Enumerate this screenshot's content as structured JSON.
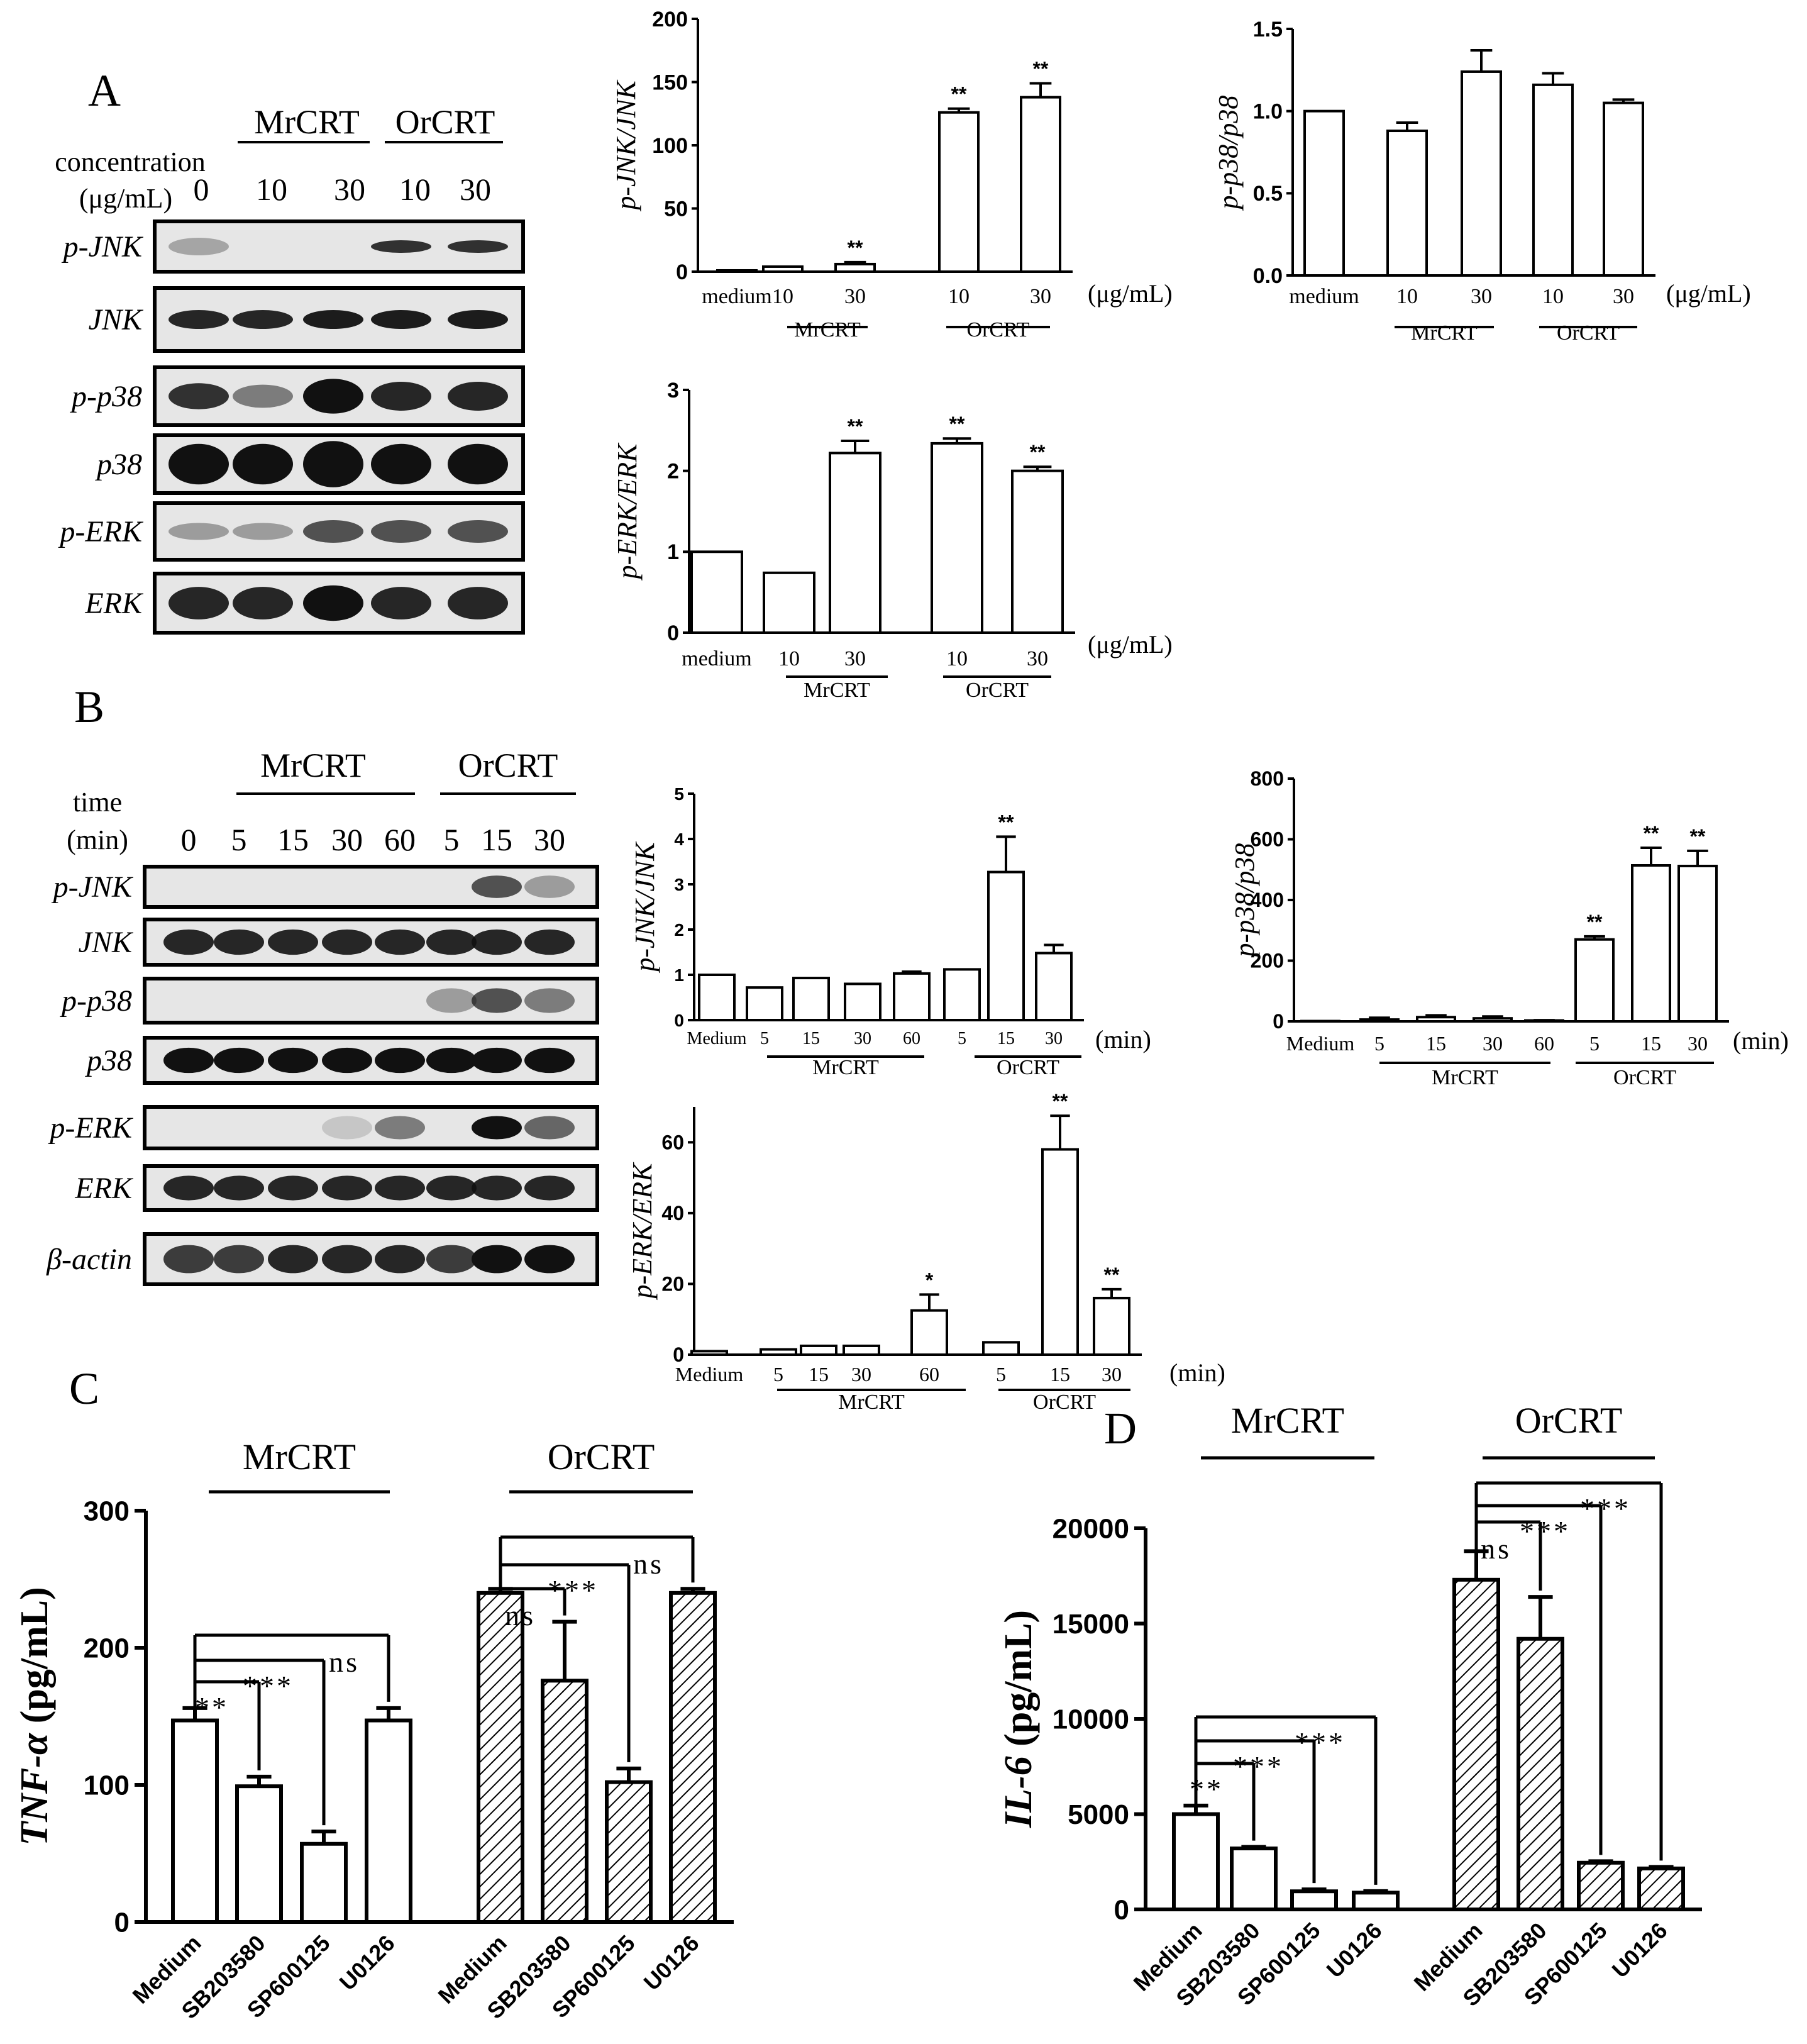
{
  "panel_letters": {
    "a": "A",
    "b": "B",
    "c": "C",
    "d": "D"
  },
  "blot_a": {
    "groups": [
      "MrCRT",
      "OrCRT"
    ],
    "header_label_line1": "concentration",
    "header_label_line2": "(μg/mL)",
    "lanes": [
      "0",
      "10",
      "30",
      "10",
      "30"
    ],
    "rows": [
      "p-JNK",
      "JNK",
      "p-p38",
      "p38",
      "p-ERK",
      "ERK"
    ]
  },
  "blot_b": {
    "groups": [
      "MrCRT",
      "OrCRT"
    ],
    "header_label_line1": "time",
    "header_label_line2": "(min)",
    "lanes": [
      "0",
      "5",
      "15",
      "30",
      "60",
      "5",
      "15",
      "30"
    ],
    "rows": [
      "p-JNK",
      "JNK",
      "p-p38",
      "p38",
      "p-ERK",
      "ERK",
      "β-actin"
    ]
  },
  "chart_data": [
    {
      "id": "a_pjnk",
      "type": "bar",
      "ylabel": "p-JNK/JNK",
      "ylim": [
        0,
        200
      ],
      "yticks": [
        "0",
        "50",
        "100",
        "150",
        "200"
      ],
      "categories": [
        "medium",
        "10",
        "30",
        "10",
        "30"
      ],
      "values": [
        1,
        4,
        6,
        126,
        138
      ],
      "errors": [
        0,
        0,
        1.5,
        3,
        11
      ],
      "significance": [
        "",
        "",
        "**",
        "**",
        "**"
      ],
      "groups": [
        "MrCRT",
        "OrCRT"
      ],
      "unit": "(μg/mL)"
    },
    {
      "id": "a_pp38",
      "type": "bar",
      "ylabel": "p-p38/p38",
      "ylim": [
        0,
        1.5
      ],
      "yticks": [
        "0.0",
        "0.5",
        "1.0",
        "1.5"
      ],
      "categories": [
        "medium",
        "10",
        "30",
        "10",
        "30"
      ],
      "values": [
        1.0,
        0.88,
        1.24,
        1.16,
        1.05
      ],
      "errors": [
        0,
        0.05,
        0.13,
        0.07,
        0.02
      ],
      "significance": [
        "",
        "",
        "",
        "",
        ""
      ],
      "groups": [
        "MrCRT",
        "OrCRT"
      ],
      "unit": "(μg/mL)"
    },
    {
      "id": "a_perk",
      "type": "bar",
      "ylabel": "p-ERK/ERK",
      "ylim": [
        0,
        3
      ],
      "yticks": [
        "0",
        "1",
        "2",
        "3"
      ],
      "categories": [
        "medium",
        "10",
        "30",
        "10",
        "30"
      ],
      "values": [
        1.0,
        0.74,
        2.22,
        2.34,
        2.0
      ],
      "errors": [
        0,
        0,
        0.15,
        0.06,
        0.05
      ],
      "significance": [
        "",
        "",
        "**",
        "**",
        "**"
      ],
      "groups": [
        "MrCRT",
        "OrCRT"
      ],
      "unit": "(μg/mL)"
    },
    {
      "id": "b_pjnk",
      "type": "bar",
      "ylabel": "p-JNK/JNK",
      "ylim": [
        0,
        5
      ],
      "yticks": [
        "0",
        "1",
        "2",
        "3",
        "4",
        "5"
      ],
      "categories": [
        "Medium",
        "5",
        "15",
        "30",
        "60",
        "5",
        "15",
        "30"
      ],
      "values": [
        1.0,
        0.72,
        0.93,
        0.8,
        1.03,
        1.12,
        3.27,
        1.48
      ],
      "errors": [
        0,
        0,
        0,
        0,
        0.04,
        0,
        0.78,
        0.18
      ],
      "significance": [
        "",
        "",
        "",
        "",
        "",
        "",
        "**",
        ""
      ],
      "groups": [
        "MrCRT",
        "OrCRT"
      ],
      "unit": "(min)"
    },
    {
      "id": "b_pp38",
      "type": "bar",
      "ylabel": "p-p38/p38",
      "ylim": [
        0,
        800
      ],
      "yticks": [
        "0",
        "200",
        "400",
        "600",
        "800"
      ],
      "categories": [
        "Medium",
        "5",
        "15",
        "30",
        "60",
        "5",
        "15",
        "30"
      ],
      "values": [
        1,
        6,
        14,
        10,
        3,
        270,
        514,
        512
      ],
      "errors": [
        0,
        6,
        6,
        6,
        1,
        10,
        58,
        50
      ],
      "significance": [
        "",
        "",
        "",
        "",
        "",
        "**",
        "**",
        "**"
      ],
      "groups": [
        "MrCRT",
        "OrCRT"
      ],
      "unit": "(min)"
    },
    {
      "id": "b_perk",
      "type": "bar",
      "ylabel": "p-ERK/ERK",
      "ylim": [
        0,
        70
      ],
      "yticks": [
        "0",
        "20",
        "40",
        "60"
      ],
      "categories": [
        "Medium",
        "5",
        "15",
        "30",
        "60",
        "5",
        "15",
        "30"
      ],
      "values": [
        1,
        1.5,
        2.5,
        2.5,
        12.5,
        3.5,
        58,
        16
      ],
      "errors": [
        0,
        0,
        0,
        0,
        4.5,
        0,
        9.5,
        2.5
      ],
      "significance": [
        "",
        "",
        "",
        "",
        "*",
        "",
        "**",
        "**"
      ],
      "groups": [
        "MrCRT",
        "OrCRT"
      ],
      "unit": "(min)"
    },
    {
      "id": "c_tnf",
      "type": "bar",
      "ylabel": "TNF-α (pg/mL)",
      "ylim": [
        0,
        300
      ],
      "yticks": [
        "0",
        "100",
        "200",
        "300"
      ],
      "categories": [
        "Medium",
        "SB203580",
        "SP600125",
        "U0126",
        "Medium",
        "SB203580",
        "SP600125",
        "U0126"
      ],
      "values": [
        147,
        99,
        57,
        147,
        240,
        176,
        102,
        240
      ],
      "errors": [
        9,
        7,
        9,
        9,
        3,
        43,
        10,
        3
      ],
      "hatched": [
        false,
        false,
        false,
        false,
        true,
        true,
        true,
        true
      ],
      "groups": [
        "MrCRT",
        "OrCRT"
      ],
      "comparisons": [
        {
          "from": 0,
          "to": 1,
          "label": "**"
        },
        {
          "from": 0,
          "to": 2,
          "label": "***"
        },
        {
          "from": 0,
          "to": 3,
          "label": "ns"
        },
        {
          "from": 4,
          "to": 5,
          "label": "ns"
        },
        {
          "from": 4,
          "to": 6,
          "label": "***"
        },
        {
          "from": 4,
          "to": 7,
          "label": "ns"
        }
      ]
    },
    {
      "id": "d_il6",
      "type": "bar",
      "ylabel": "IL-6 (pg/mL)",
      "ylim": [
        0,
        20000
      ],
      "yticks": [
        "0",
        "5000",
        "10000",
        "15000",
        "20000"
      ],
      "categories": [
        "Medium",
        "SB203580",
        "SP600125",
        "U0126",
        "Medium",
        "SB203580",
        "SP600125",
        "U0126"
      ],
      "values": [
        5000,
        3200,
        950,
        880,
        17300,
        14200,
        2450,
        2150
      ],
      "errors": [
        450,
        80,
        100,
        80,
        1500,
        2200,
        80,
        80
      ],
      "hatched": [
        false,
        false,
        false,
        false,
        true,
        true,
        true,
        true
      ],
      "groups": [
        "MrCRT",
        "OrCRT"
      ],
      "comparisons": [
        {
          "from": 0,
          "to": 1,
          "label": "**"
        },
        {
          "from": 0,
          "to": 2,
          "label": "***"
        },
        {
          "from": 0,
          "to": 3,
          "label": "***"
        },
        {
          "from": 4,
          "to": 5,
          "label": "ns"
        },
        {
          "from": 4,
          "to": 6,
          "label": "***"
        },
        {
          "from": 4,
          "to": 7,
          "label": "***"
        }
      ]
    }
  ]
}
